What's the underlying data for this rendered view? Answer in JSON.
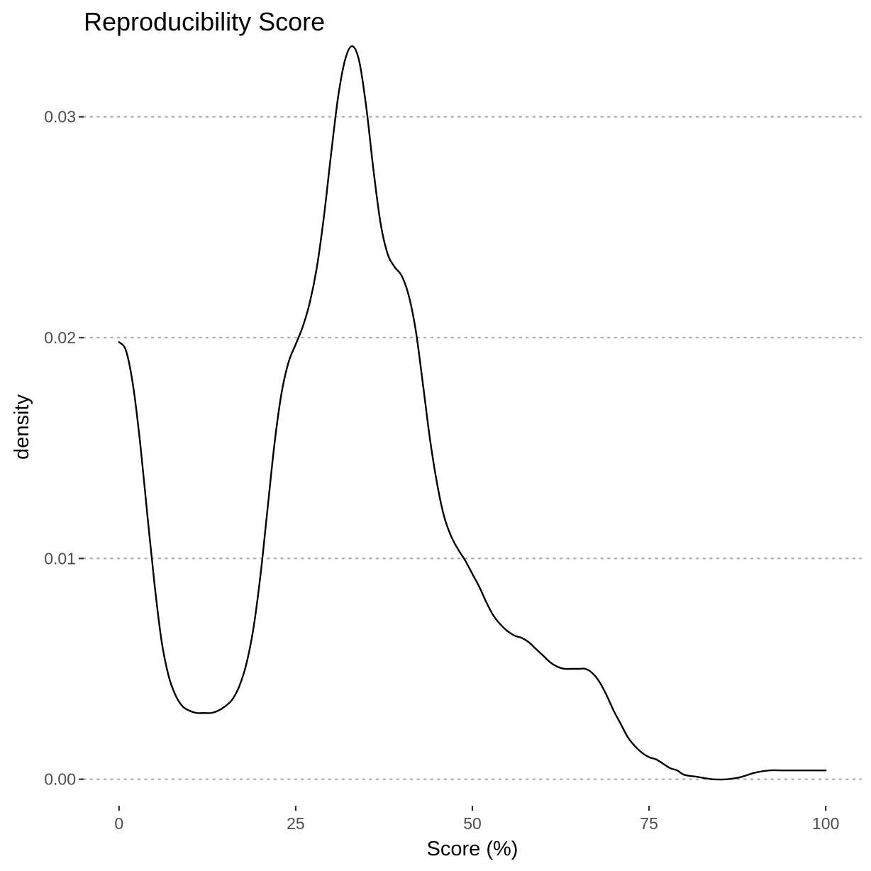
{
  "chart_data": {
    "type": "line",
    "title": "Reproducibility Score",
    "xlabel": "Score (%)",
    "ylabel": "density",
    "xlim": [
      -5,
      105
    ],
    "ylim": [
      -0.0012,
      0.0333
    ],
    "x_ticks": [
      0,
      25,
      50,
      75,
      100
    ],
    "x_tick_labels": [
      "0",
      "25",
      "50",
      "75",
      "100"
    ],
    "y_ticks": [
      0.0,
      0.01,
      0.02,
      0.03
    ],
    "y_tick_labels": [
      "0.00",
      "0.01",
      "0.02",
      "0.03"
    ],
    "grid": "horizontal dotted major",
    "legend": "none",
    "line_color": "#000000",
    "series": [
      {
        "x": [
          0,
          1,
          2,
          3,
          4,
          5,
          6,
          7,
          8,
          9,
          10,
          11,
          12,
          13,
          14,
          15,
          16,
          17,
          18,
          19,
          20,
          21,
          22,
          23,
          24,
          25,
          26,
          27,
          28,
          29,
          30,
          31,
          32,
          33,
          34,
          35,
          36,
          37,
          38,
          39,
          40,
          41,
          42,
          43,
          44,
          45,
          46,
          47,
          48,
          49,
          50,
          51,
          52,
          53,
          54,
          55,
          56,
          57,
          58,
          59,
          60,
          61,
          62,
          63,
          64,
          65,
          66,
          67,
          68,
          69,
          70,
          71,
          72,
          73,
          74,
          75,
          76,
          77,
          78,
          79,
          80,
          82,
          84,
          86,
          88,
          90,
          92,
          94,
          96,
          98,
          100
        ],
        "y": [
          0.0198,
          0.0194,
          0.0178,
          0.0152,
          0.012,
          0.0089,
          0.0063,
          0.0047,
          0.0038,
          0.0033,
          0.0031,
          0.003,
          0.003,
          0.003,
          0.0031,
          0.0033,
          0.0036,
          0.0042,
          0.0052,
          0.0068,
          0.0092,
          0.0122,
          0.0152,
          0.0175,
          0.0189,
          0.0197,
          0.0205,
          0.0216,
          0.0232,
          0.0255,
          0.0283,
          0.0309,
          0.0326,
          0.0332,
          0.0325,
          0.0304,
          0.0276,
          0.0252,
          0.0238,
          0.0232,
          0.0228,
          0.0219,
          0.0203,
          0.0179,
          0.0154,
          0.0134,
          0.0119,
          0.011,
          0.0104,
          0.0099,
          0.0093,
          0.0087,
          0.008,
          0.0074,
          0.007,
          0.0067,
          0.0065,
          0.0064,
          0.0062,
          0.0059,
          0.0056,
          0.0053,
          0.0051,
          0.005,
          0.005,
          0.005,
          0.005,
          0.0048,
          0.0044,
          0.0038,
          0.0031,
          0.0025,
          0.0019,
          0.0015,
          0.0012,
          0.001,
          0.0009,
          0.0007,
          0.0005,
          0.0004,
          0.0002,
          0.0001,
          0.0,
          0.0,
          0.0001,
          0.0003,
          0.0004,
          0.0004,
          0.0004,
          0.0004,
          0.0004
        ]
      }
    ]
  }
}
